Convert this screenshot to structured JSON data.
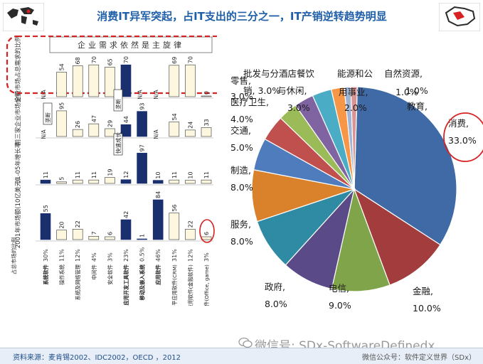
{
  "title": "消费IT异军突起，占IT支出的三分之一，IT产销逆转趋势明显",
  "source": "资料来源：麦肯锡2002、IDC2002，OECD ，2012",
  "watermark": "微信号: SDx-SoftwareDefinedx",
  "watermark_small": "微信公众号：软件定义世界（SDx）",
  "colors": {
    "dark_bar": "#1a2f6e",
    "light_bar": "#fdf7df",
    "highlight": "#d62222"
  },
  "chart_data": [
    {
      "type": "bar",
      "title": "",
      "categories": [
        "系统软件",
        "操作系统",
        "系统及网络管理",
        "中间件",
        "安全软件",
        "应用开发工具软件",
        "移动及嵌入系统",
        "应用软件",
        "水平应用软件(CRM)",
        "垂直应用软件(金融软件)",
        "消费类软件(Office, game)"
      ],
      "share_2001_label": [
        "30%",
        "11%",
        "12%",
        "4%",
        "3%",
        "23%",
        "0.5%",
        "46%",
        "31%",
        "12%",
        "3%"
      ],
      "panels": [
        {
          "label": "企业市场占总需求的比例",
          "banner": "企业需求依然是主旋律",
          "values": [
            null,
            54,
            68,
            70,
            65,
            70,
            null,
            null,
            69,
            70,
            0
          ],
          "display": [
            "N/A",
            "54",
            "68",
            "70",
            "65",
            "70",
            "N/A",
            "N/A",
            "69",
            "70",
            "0"
          ]
        },
        {
          "label": "前三家企业市场份额",
          "callouts": [
            "垄断",
            "垄断"
          ],
          "values": [
            null,
            95,
            26,
            47,
            29,
            44,
            93,
            null,
            54,
            24,
            33
          ],
          "display": [
            "N/A",
            "95",
            "26",
            "47",
            "29",
            "44",
            "93",
            "N/A",
            "54",
            "24",
            "33"
          ]
        },
        {
          "label": "01-05年增长率",
          "callouts": [
            "快速成长"
          ],
          "values": [
            11,
            5,
            11,
            11,
            19,
            12,
            97,
            10,
            11,
            10,
            11
          ],
          "display": [
            "11",
            "5",
            "11",
            "11",
            "19",
            "12",
            "97",
            "10",
            "11",
            "10",
            "11"
          ]
        },
        {
          "label": "2001年市场额(10亿美元)",
          "values": [
            55,
            20,
            22,
            7,
            6,
            42,
            1,
            84,
            56,
            22,
            6
          ],
          "display": [
            "55",
            "20",
            "22",
            "7",
            "6",
            "42",
            "1",
            "84",
            "56",
            "22",
            "6"
          ]
        }
      ],
      "bottom_label": "占总市场的比例",
      "highlighted_categories": [
        0,
        5,
        6,
        7
      ]
    },
    {
      "type": "pie",
      "title": "",
      "slices": [
        {
          "label": "消费",
          "value": 33.0,
          "color": "#3f6aa5"
        },
        {
          "label": "金融",
          "value": 10.0,
          "color": "#a33c3c"
        },
        {
          "label": "电信",
          "value": 9.0,
          "color": "#7fa44a"
        },
        {
          "label": "政府",
          "value": 8.0,
          "color": "#5b4a88"
        },
        {
          "label": "服务",
          "value": 8.0,
          "color": "#2f8aa3"
        },
        {
          "label": "制造",
          "value": 8.0,
          "color": "#d9822b"
        },
        {
          "label": "交通",
          "value": 5.0,
          "color": "#4f7cbd"
        },
        {
          "label": "医疗卫生",
          "value": 4.0,
          "color": "#c0504d"
        },
        {
          "label": "零售",
          "value": 3.0,
          "color": "#9bbb59"
        },
        {
          "label": "批发与分酒店餐饮",
          "value": 3.0,
          "color": "#8064a2"
        },
        {
          "label": "销，与休闲",
          "value": 3.0,
          "color": "#4bacc6"
        },
        {
          "label": "能源和公用事业",
          "value": 2.0,
          "color": "#f79646"
        },
        {
          "label": "自然资源",
          "value": 1.0,
          "color": "#a0b4d6"
        },
        {
          "label": "教育",
          "value": 1.0,
          "color": "#d99594"
        }
      ],
      "text_labels": [
        {
          "text": "消费,"
        },
        {
          "text": "33.0%"
        },
        {
          "text": "金融,"
        },
        {
          "text": "10.0%"
        },
        {
          "text": "电信,"
        },
        {
          "text": "9.0%"
        },
        {
          "text": "政府,"
        },
        {
          "text": "8.0%"
        },
        {
          "text": "服务,"
        },
        {
          "text": "8.0%"
        },
        {
          "text": "制造,"
        },
        {
          "text": "8.0%"
        },
        {
          "text": "交通,"
        },
        {
          "text": "5.0%"
        },
        {
          "text": "医疗卫生,"
        },
        {
          "text": "4.0%"
        },
        {
          "text": "零售,"
        },
        {
          "text": "3.0%"
        },
        {
          "text": "批发与分酒店餐饮"
        },
        {
          "text": "销, 3.0%"
        },
        {
          "text": "与休闲,"
        },
        {
          "text": "3.0%"
        },
        {
          "text": "能源和公"
        },
        {
          "text": "用事业,"
        },
        {
          "text": "2.0%"
        },
        {
          "text": "自然资源,"
        },
        {
          "text": "1.0%"
        },
        {
          "text": "教育,"
        },
        {
          "text": "1.0%"
        }
      ]
    }
  ]
}
